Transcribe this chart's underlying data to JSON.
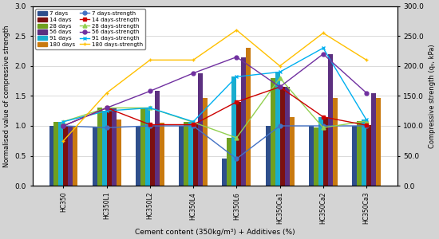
{
  "categories": [
    "HC350",
    "HC350L1",
    "HC350L2",
    "HC350L4",
    "HC350L6",
    "HC350Ca1",
    "HC350Ca2",
    "HC350Ca3"
  ],
  "bar_order": [
    "7 days",
    "28 days",
    "91 days",
    "14 days",
    "56 days",
    "180 days"
  ],
  "bar_data": {
    "7 days": [
      1.0,
      0.97,
      1.0,
      1.0,
      0.45,
      1.0,
      1.0,
      1.0
    ],
    "28 days": [
      1.07,
      1.3,
      1.3,
      1.06,
      0.8,
      1.8,
      0.97,
      1.08
    ],
    "91 days": [
      1.07,
      1.25,
      1.3,
      1.07,
      1.82,
      1.9,
      1.15,
      1.1
    ],
    "14 days": [
      1.0,
      1.3,
      1.02,
      1.02,
      1.4,
      1.65,
      1.15,
      1.01
    ],
    "56 days": [
      1.0,
      1.3,
      1.58,
      1.88,
      2.15,
      1.65,
      2.2,
      1.55
    ],
    "180 days": [
      1.0,
      1.1,
      1.05,
      1.47,
      2.3,
      1.15,
      1.47,
      1.47
    ]
  },
  "bar_colors": {
    "7 days": "#2e4f8c",
    "28 days": "#70a020",
    "91 days": "#1aadce",
    "14 days": "#7b1010",
    "56 days": "#5c3080",
    "180 days": "#c97a10"
  },
  "line_order": [
    "7 days-strength",
    "28 days-strength",
    "91 days-strength",
    "14 days-strength",
    "56 days-strength",
    "180 days-strength"
  ],
  "line_data": {
    "7 days-strength": [
      100,
      97,
      100,
      100,
      45,
      100,
      100,
      100
    ],
    "28 days-strength": [
      107,
      130,
      130,
      106,
      80,
      180,
      97,
      108
    ],
    "91 days-strength": [
      107,
      125,
      130,
      107,
      182,
      190,
      230,
      110
    ],
    "14 days-strength": [
      100,
      130,
      102,
      102,
      140,
      165,
      115,
      101
    ],
    "56 days-strength": [
      100,
      130,
      158,
      188,
      215,
      165,
      220,
      155
    ],
    "180 days-strength": [
      75,
      155,
      210,
      210,
      260,
      200,
      255,
      210
    ]
  },
  "line_colors": {
    "7 days-strength": "#4472c4",
    "28 days-strength": "#92d050",
    "91 days-strength": "#00b0f0",
    "14 days-strength": "#cc0000",
    "56 days-strength": "#7030a0",
    "180 days-strength": "#ffc000"
  },
  "line_markers": {
    "7 days-strength": "o",
    "28 days-strength": "^",
    "91 days-strength": "x",
    "14 days-strength": "s",
    "56 days-strength": "o",
    "180 days-strength": "+"
  },
  "ylabel_left": "Normalised value of compressive strength",
  "ylabel_right": "Compressive strength (qᵤ, kPa)",
  "xlabel": "Cement content (350kg/m³) + Additives (%)",
  "ylim_left": [
    0.0,
    3.0
  ],
  "ylim_right": [
    0.0,
    300.0
  ],
  "yticks_left": [
    0.0,
    0.5,
    1.0,
    1.5,
    2.0,
    2.5,
    3.0
  ],
  "yticks_right": [
    0.0,
    50.0,
    100.0,
    150.0,
    200.0,
    250.0,
    300.0
  ],
  "background": "#d4d4d4",
  "plot_background": "#ffffff"
}
